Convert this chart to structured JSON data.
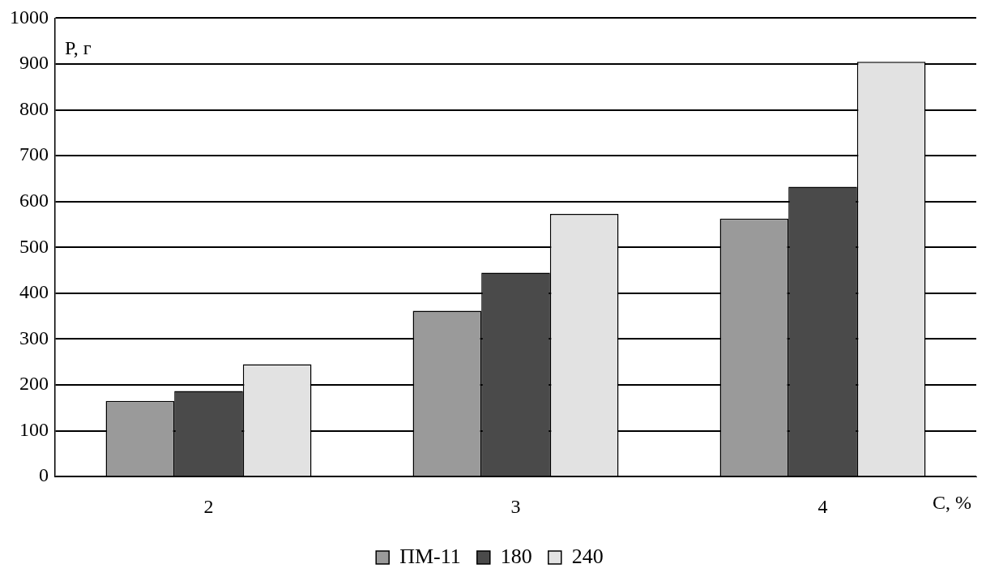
{
  "chart_data": {
    "type": "bar",
    "xlabel": "C, %",
    "ylabel": "P, г",
    "categories": [
      "2",
      "3",
      "4"
    ],
    "series": [
      {
        "name": "ПМ-11",
        "color": "#9a9a9a",
        "values": [
          165,
          362,
          563
        ]
      },
      {
        "name": "180",
        "color": "#4a4a4a",
        "values": [
          187,
          445,
          632
        ]
      },
      {
        "name": "240",
        "color": "#e2e2e2",
        "values": [
          245,
          573,
          905
        ]
      }
    ],
    "ylim": [
      0,
      1000
    ],
    "yticks": [
      0,
      100,
      200,
      300,
      400,
      500,
      600,
      700,
      800,
      900,
      1000
    ],
    "grid": "y",
    "legend": "bottom"
  }
}
